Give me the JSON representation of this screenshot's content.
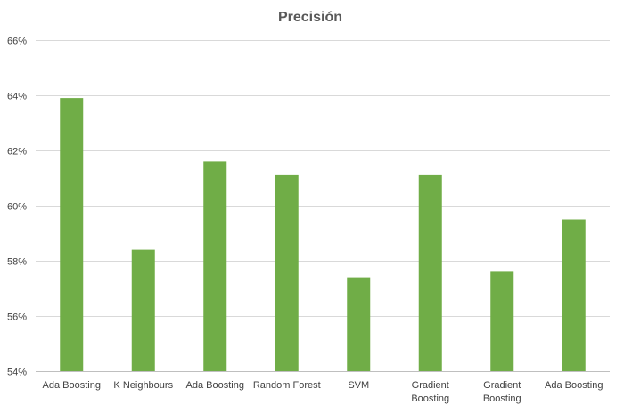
{
  "chart_data": {
    "type": "bar",
    "title": "Precisión",
    "xlabel": "",
    "ylabel": "",
    "ylim": [
      0.54,
      0.66
    ],
    "y_tick_step": 0.02,
    "y_tick_format": "percent",
    "y_ticks": [
      "54%",
      "56%",
      "58%",
      "60%",
      "62%",
      "64%",
      "66%"
    ],
    "grid": true,
    "legend": "none",
    "bar_color": "#70ad47",
    "categories": [
      [
        "Ada Boosting"
      ],
      [
        "K Neighbours"
      ],
      [
        "Ada Boosting"
      ],
      [
        "Random Forest"
      ],
      [
        "SVM"
      ],
      [
        "Gradient",
        "Boosting"
      ],
      [
        "Gradient",
        "Boosting"
      ],
      [
        "Ada Boosting"
      ]
    ],
    "values": [
      0.639,
      0.584,
      0.616,
      0.611,
      0.574,
      0.611,
      0.576,
      0.595
    ]
  }
}
